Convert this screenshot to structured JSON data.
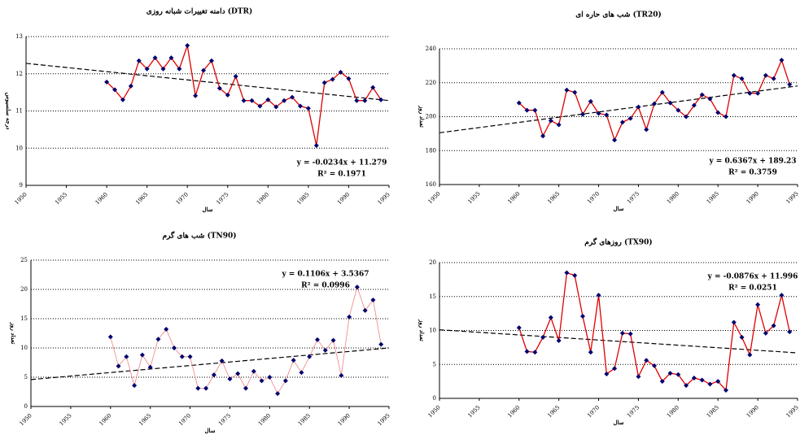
{
  "chart_data": [
    {
      "type": "line",
      "title": "دامنه تغییرات شبانه روزی (DTR)",
      "x_label": "سال",
      "y_label": "درجه سلسیوس",
      "equation": "y = -0.0234x + 11.279",
      "r_squared": "R² = 0.1971",
      "x": [
        1960,
        1961,
        1962,
        1963,
        1964,
        1965,
        1966,
        1967,
        1968,
        1969,
        1970,
        1971,
        1972,
        1973,
        1974,
        1975,
        1976,
        1977,
        1978,
        1979,
        1980,
        1981,
        1982,
        1983,
        1984,
        1985,
        1986,
        1987,
        1988,
        1989,
        1990,
        1991,
        1992,
        1993,
        1994
      ],
      "series": [
        {
          "color": "#e00000",
          "marker_color": "#00006e",
          "values": [
            11.78,
            11.57,
            11.3,
            11.67,
            12.35,
            12.13,
            12.43,
            12.13,
            12.43,
            12.13,
            12.76,
            11.41,
            12.09,
            12.35,
            11.61,
            11.43,
            11.93,
            11.28,
            11.28,
            11.13,
            11.3,
            11.11,
            11.28,
            11.37,
            11.13,
            11.07,
            10.07,
            11.76,
            11.85,
            12.04,
            11.87,
            11.28,
            11.28,
            11.63,
            11.3
          ]
        }
      ],
      "trendline": {
        "x": [
          1950,
          1995
        ],
        "values": [
          12.28,
          11.28
        ]
      },
      "xlim": [
        1950,
        1995
      ],
      "xticks": [
        1950,
        1955,
        1960,
        1965,
        1970,
        1975,
        1980,
        1985,
        1990,
        1995
      ],
      "ylim": [
        9,
        13
      ],
      "yticks": [
        9,
        10,
        11,
        12,
        13
      ],
      "grid": true
    },
    {
      "type": "line",
      "title": "شب های حاره ای (TR20)",
      "x_label": "سال",
      "y_label": "تعداد روز",
      "equation": "y = 0.6367x + 189.23",
      "r_squared": "R² = 0.3759",
      "x": [
        1960,
        1961,
        1962,
        1963,
        1964,
        1965,
        1966,
        1967,
        1968,
        1969,
        1970,
        1971,
        1972,
        1973,
        1974,
        1975,
        1976,
        1977,
        1978,
        1979,
        1980,
        1981,
        1982,
        1983,
        1984,
        1985,
        1986,
        1987,
        1988,
        1989,
        1990,
        1991,
        1992,
        1993,
        1994
      ],
      "series": [
        {
          "color": "#e00000",
          "marker_color": "#00006e",
          "values": [
            208.1,
            203.8,
            203.8,
            188.6,
            197.6,
            195.2,
            215.7,
            214.3,
            201.4,
            209,
            201.9,
            201,
            186.2,
            196.7,
            199,
            205.7,
            192.4,
            207.6,
            214.3,
            208.1,
            203.8,
            200,
            206.7,
            212.9,
            210.5,
            202.4,
            200,
            224.3,
            222.4,
            213.8,
            213.8,
            224.3,
            222.4,
            233.3,
            219
          ]
        }
      ],
      "trendline": {
        "x": [
          1950,
          1995
        ],
        "values": [
          190.5,
          218.1
        ]
      },
      "xlim": [
        1950,
        1995
      ],
      "xticks": [
        1950,
        1955,
        1960,
        1965,
        1970,
        1975,
        1980,
        1985,
        1990,
        1995
      ],
      "ylim": [
        160,
        240
      ],
      "yticks": [
        160,
        180,
        200,
        220,
        240
      ],
      "grid": true
    },
    {
      "type": "line",
      "title": "شب های گرم (TN90)",
      "x_label": "سال",
      "y_label": "تعداد روز",
      "equation": "y = 0.1106x + 3.5367",
      "r_squared": "R² = 0.0996",
      "x": [
        1960,
        1961,
        1962,
        1963,
        1964,
        1965,
        1966,
        1967,
        1968,
        1969,
        1970,
        1971,
        1972,
        1973,
        1974,
        1975,
        1976,
        1977,
        1978,
        1979,
        1980,
        1981,
        1982,
        1983,
        1984,
        1985,
        1986,
        1987,
        1988,
        1989,
        1990,
        1991,
        1992,
        1993,
        1994
      ],
      "series": [
        {
          "color": "#f08080",
          "marker_color": "#00006e",
          "values": [
            11.9,
            6.9,
            8.5,
            3.6,
            8.8,
            6.7,
            11.5,
            13.2,
            10,
            8.5,
            8.5,
            3.1,
            3.1,
            5.4,
            7.8,
            4.7,
            5.6,
            3.1,
            6,
            4.4,
            5,
            2.2,
            4.4,
            7.9,
            5.8,
            8.5,
            11.4,
            9.6,
            11.3,
            5.3,
            15.3,
            20.4,
            16.4,
            18.2,
            10.6
          ]
        }
      ],
      "trendline": {
        "x": [
          1950,
          1995
        ],
        "values": [
          4.6,
          10
        ]
      },
      "xlim": [
        1950,
        1995
      ],
      "xticks": [
        1950,
        1955,
        1960,
        1965,
        1970,
        1975,
        1980,
        1985,
        1990,
        1995
      ],
      "ylim": [
        0,
        25
      ],
      "yticks": [
        0,
        5,
        10,
        15,
        20,
        25
      ],
      "grid": true
    },
    {
      "type": "line",
      "title": "روزهای گرم (TX90)",
      "x_label": "سال",
      "y_label": "تعداد روز",
      "equation": "y = -0.0876x + 11.996",
      "r_squared": "R² = 0.0251",
      "x": [
        1960,
        1961,
        1962,
        1963,
        1964,
        1965,
        1966,
        1967,
        1968,
        1969,
        1970,
        1971,
        1972,
        1973,
        1974,
        1975,
        1976,
        1977,
        1978,
        1979,
        1980,
        1981,
        1982,
        1983,
        1984,
        1985,
        1986,
        1987,
        1988,
        1989,
        1990,
        1991,
        1992,
        1993,
        1994
      ],
      "series": [
        {
          "color": "#e00000",
          "marker_color": "#00006e",
          "values": [
            10.4,
            6.9,
            6.8,
            9,
            11.9,
            8.5,
            18.5,
            18.1,
            12.1,
            6.8,
            15.2,
            3.6,
            4.4,
            9.6,
            9.5,
            3.2,
            5.6,
            4.8,
            2.5,
            3.7,
            3.5,
            1.9,
            3,
            2.7,
            2.1,
            2.5,
            1.2,
            11.2,
            9,
            6.4,
            13.8,
            9.6,
            10.7,
            15.2,
            9.8
          ]
        }
      ],
      "trendline": {
        "x": [
          1950,
          1995
        ],
        "values": [
          10.1,
          6.7
        ]
      },
      "xlim": [
        1950,
        1995
      ],
      "xticks": [
        1950,
        1955,
        1960,
        1965,
        1970,
        1975,
        1980,
        1985,
        1990,
        1995
      ],
      "ylim": [
        0,
        20
      ],
      "yticks": [
        0,
        5,
        10,
        15,
        20
      ],
      "grid": true
    }
  ]
}
